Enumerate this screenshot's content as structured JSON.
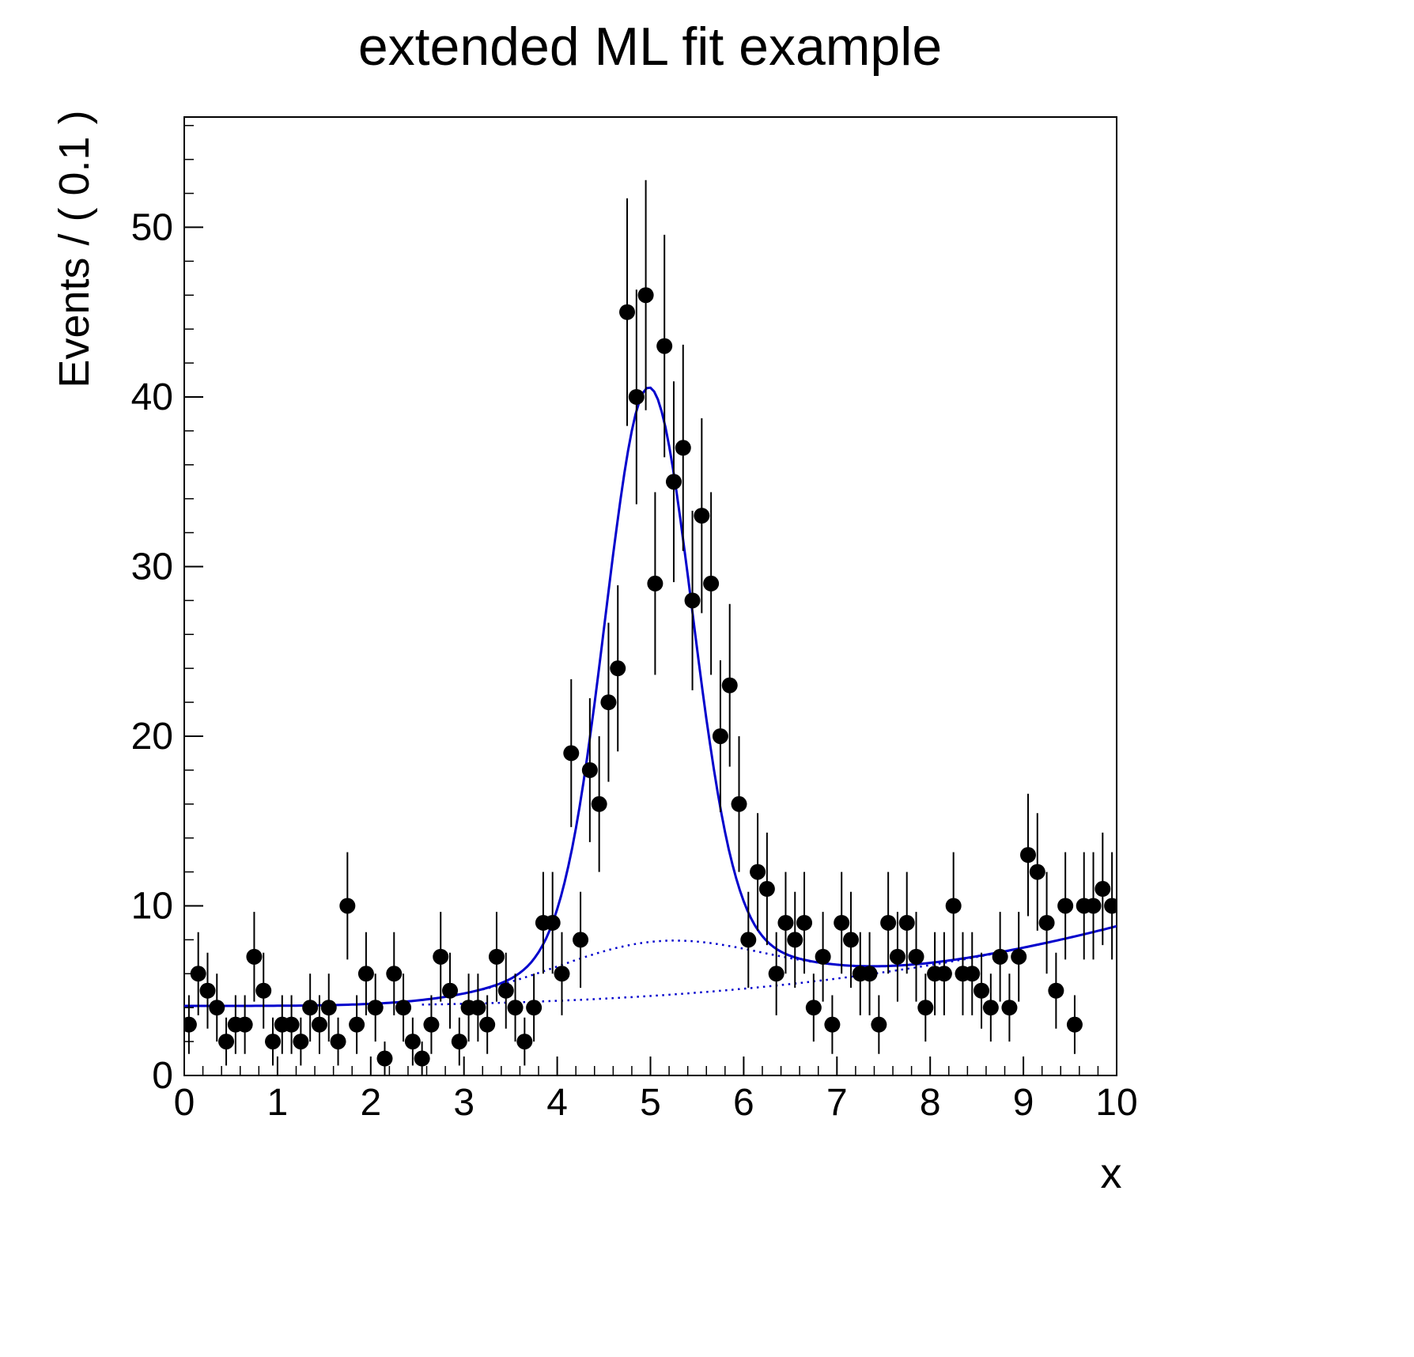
{
  "page": {
    "background": "#ffffff"
  },
  "chart_data": {
    "type": "scatter",
    "title": "extended ML fit example",
    "xlabel": "x",
    "ylabel": "Events / ( 0.1 )",
    "xlim": [
      0,
      10
    ],
    "ylim": [
      0,
      56.5
    ],
    "xticks": [
      0,
      1,
      2,
      3,
      4,
      5,
      6,
      7,
      8,
      9,
      10
    ],
    "yticks": [
      0,
      10,
      20,
      30,
      40,
      50
    ],
    "x_minor_step": 0.2,
    "y_minor_step": 2,
    "grid": false,
    "legend": "none",
    "accent_color": "#0000cc",
    "point_color": "#000000",
    "error_style": "poisson-sqrt",
    "points": {
      "x_start": 0.05,
      "x_step": 0.1,
      "y": [
        3,
        6,
        5,
        4,
        2,
        3,
        3,
        7,
        5,
        2,
        3,
        3,
        2,
        4,
        3,
        4,
        2,
        10,
        3,
        6,
        4,
        1,
        6,
        4,
        2,
        1,
        3,
        7,
        5,
        2,
        4,
        4,
        3,
        7,
        5,
        4,
        2,
        4,
        9,
        9,
        6,
        19,
        8,
        18,
        16,
        22,
        24,
        45,
        40,
        46,
        29,
        43,
        35,
        37,
        28,
        33,
        29,
        20,
        23,
        16,
        8,
        12,
        11,
        6,
        9,
        8,
        9,
        4,
        7,
        3,
        9,
        8,
        6,
        6,
        3,
        9,
        7,
        9,
        7,
        4,
        6,
        6,
        10,
        6,
        6,
        5,
        4,
        7,
        4,
        7,
        13,
        12,
        9,
        5,
        10,
        3,
        10,
        10,
        11,
        10
      ]
    },
    "model": {
      "bkg": {
        "c0": 4.1,
        "c3": 0.0047
      },
      "broad_gauss": {
        "amp": 3.2,
        "mean": 5.1,
        "sigma": 1.15
      },
      "narrow_gauss": {
        "amp": 32.7,
        "mean": 4.98,
        "sigma": 0.46
      }
    },
    "curves": [
      {
        "name": "total-fit",
        "components": [
          "bkg",
          "broad_gauss",
          "narrow_gauss"
        ],
        "dash": "solid",
        "width": 3,
        "range": [
          0,
          10
        ]
      },
      {
        "name": "bkg-plus-broad-signal",
        "components": [
          "bkg",
          "broad_gauss"
        ],
        "dash": "dotted",
        "width": 2.5,
        "range": [
          3.0,
          10
        ]
      },
      {
        "name": "background-only",
        "components": [
          "bkg"
        ],
        "dash": "dotted",
        "width": 2.5,
        "range": [
          2.55,
          10
        ]
      }
    ]
  }
}
